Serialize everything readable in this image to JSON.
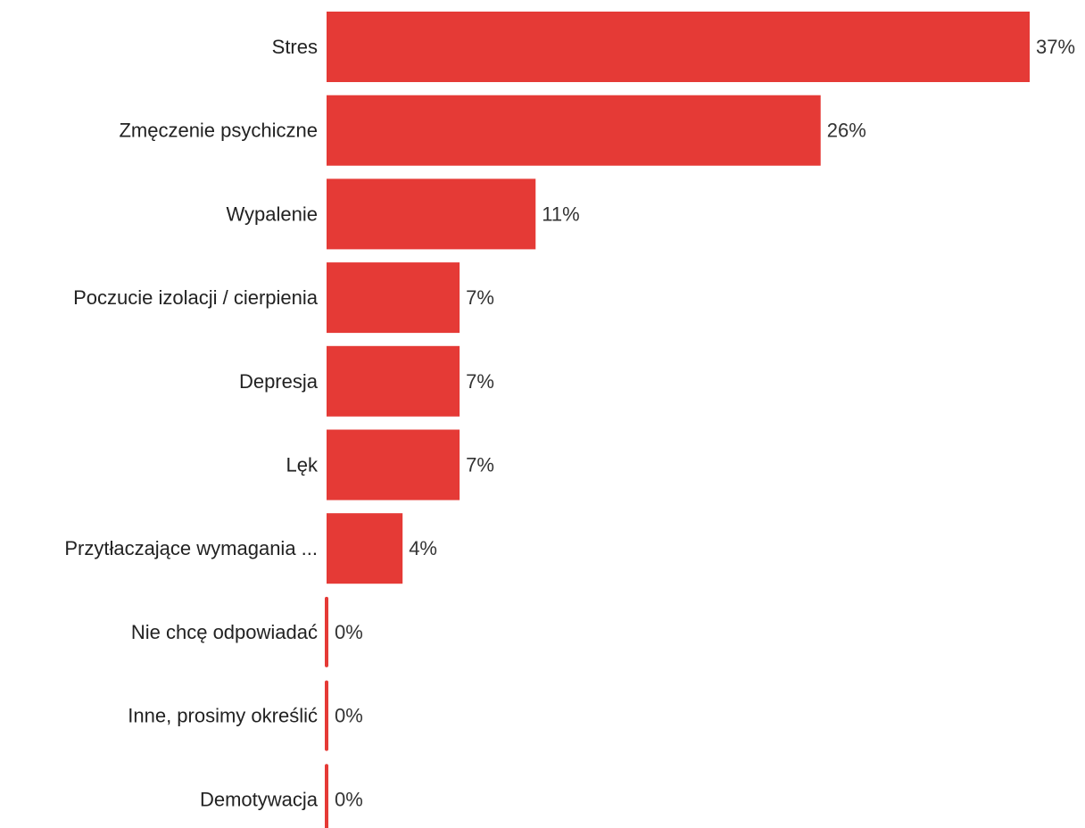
{
  "chart_data": {
    "type": "bar",
    "orientation": "horizontal",
    "categories": [
      "Stres",
      "Zmęczenie psychiczne",
      "Wypalenie",
      "Poczucie izolacji / cierpienia",
      "Depresja",
      "Lęk",
      "Przytłaczające wymagania ...",
      "Nie chcę odpowiadać",
      "Inne, prosimy określić",
      "Demotywacja"
    ],
    "values": [
      37,
      26,
      11,
      7,
      7,
      7,
      4,
      0,
      0,
      0
    ],
    "value_labels": [
      "37%",
      "26%",
      "11%",
      "7%",
      "7%",
      "7%",
      "4%",
      "0%",
      "0%",
      "0%"
    ],
    "unit": "%",
    "xlim": [
      0,
      37
    ],
    "grid": false,
    "legend": "none",
    "bar_color": "#e53a36"
  }
}
